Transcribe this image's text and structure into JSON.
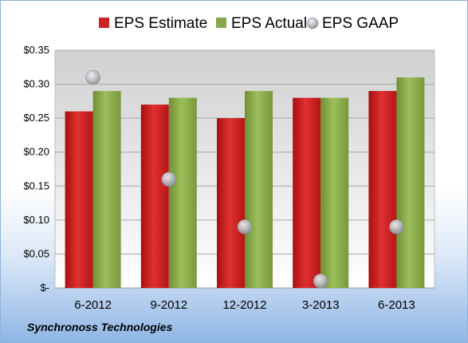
{
  "chart_data": {
    "type": "bar",
    "categories": [
      "6-2012",
      "9-2012",
      "12-2012",
      "3-2013",
      "6-2013"
    ],
    "series": [
      {
        "name": "EPS Estimate",
        "kind": "bar",
        "color": "#cc2222",
        "values": [
          0.26,
          0.27,
          0.25,
          0.28,
          0.29
        ]
      },
      {
        "name": "EPS Actual",
        "kind": "bar",
        "color": "#86a84a",
        "values": [
          0.29,
          0.28,
          0.29,
          0.28,
          0.31
        ]
      },
      {
        "name": "EPS GAAP",
        "kind": "marker",
        "color": "#b8bcc4",
        "values": [
          0.31,
          0.16,
          0.09,
          0.01,
          0.09
        ]
      }
    ],
    "yticks": [
      "$-",
      "$0.05",
      "$0.10",
      "$0.15",
      "$0.20",
      "$0.25",
      "$0.30",
      "$0.35"
    ],
    "ylim": [
      0,
      0.35
    ],
    "grid": true,
    "legend_position": "top"
  },
  "footer": {
    "company": "Synchronoss Technologies"
  }
}
